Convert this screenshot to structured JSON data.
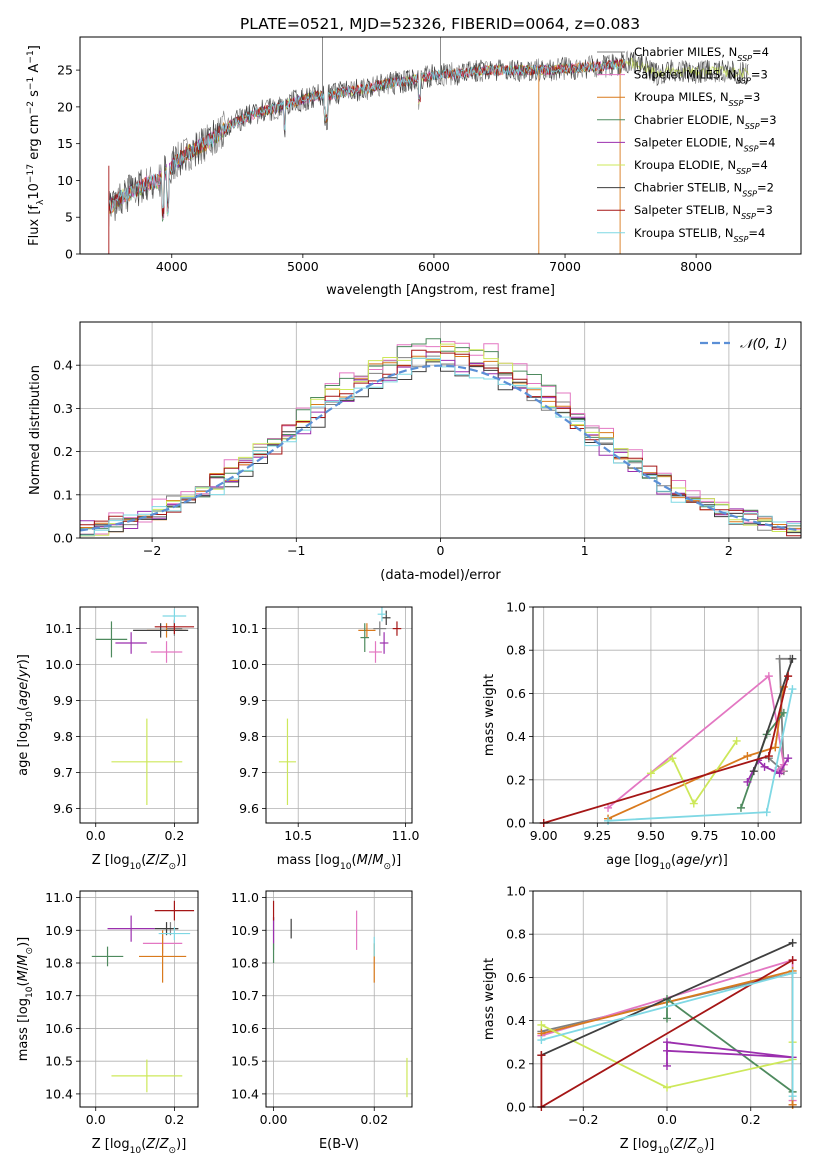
{
  "figure": {
    "title": "PLATE=0521, MJD=52326, FIBERID=0064, z=0.083"
  },
  "models": [
    {
      "label": "Chabrier MILES, N$_{SSP}$=4",
      "name": "Chabrier MILES, N",
      "sub": "SSP",
      "tail": "=4",
      "color": "#808080"
    },
    {
      "label": "Salpeter MILES, N$_{SSP}$=3",
      "name": "Salpeter MILES, N",
      "sub": "SSP",
      "tail": "=3",
      "color": "#e377c2"
    },
    {
      "label": "Kroupa MILES, N$_{SSP}$=3",
      "name": "Kroupa MILES, N",
      "sub": "SSP",
      "tail": "=3",
      "color": "#d97a1d"
    },
    {
      "label": "Chabrier ELODIE, N$_{SSP}$=3",
      "name": "Chabrier ELODIE, N",
      "sub": "SSP",
      "tail": "=3",
      "color": "#4e8a5e"
    },
    {
      "label": "Salpeter ELODIE, N$_{SSP}$=4",
      "name": "Salpeter ELODIE, N",
      "sub": "SSP",
      "tail": "=4",
      "color": "#9b2fae"
    },
    {
      "label": "Kroupa ELODIE, N$_{SSP}$=4",
      "name": "Kroupa ELODIE, N",
      "sub": "SSP",
      "tail": "=4",
      "color": "#cde85a"
    },
    {
      "label": "Chabrier STELIB, N$_{SSP}$=2",
      "name": "Chabrier STELIB, N",
      "sub": "SSP",
      "tail": "=2",
      "color": "#3f3f3f"
    },
    {
      "label": "Salpeter STELIB, N$_{SSP}$=3",
      "name": "Salpeter STELIB, N",
      "sub": "SSP",
      "tail": "=3",
      "color": "#a51616"
    },
    {
      "label": "Kroupa STELIB, N$_{SSP}$=4",
      "name": "Kroupa STELIB, N",
      "sub": "SSP",
      "tail": "=4",
      "color": "#7fd8e4"
    }
  ],
  "chart_data": [
    {
      "id": "spectrum",
      "type": "line",
      "xlabel": "wavelength [Angstrom, rest frame]",
      "ylabel": "Flux [f$_\\lambda$10$^{-17}$ erg cm$^{-2}$ s$^{-1}$ A$^{-1}$]",
      "ylabel_parts": [
        "Flux [f",
        "λ",
        "10",
        "−17",
        " erg cm",
        "−2",
        " s",
        "−1",
        " A",
        "−1",
        "]"
      ],
      "xlim": [
        3300,
        8800
      ],
      "ylim": [
        0,
        29.5
      ],
      "xticks": [
        4000,
        5000,
        6000,
        7000,
        8000
      ],
      "yticks": [
        0,
        5,
        10,
        15,
        20,
        25
      ],
      "continuum": [
        [
          3500,
          6
        ],
        [
          3600,
          7.5
        ],
        [
          3700,
          8.5
        ],
        [
          3800,
          9.5
        ],
        [
          3900,
          10
        ],
        [
          4000,
          12
        ],
        [
          4100,
          13.5
        ],
        [
          4200,
          14.5
        ],
        [
          4300,
          15.5
        ],
        [
          4400,
          17
        ],
        [
          4500,
          18
        ],
        [
          4600,
          18.8
        ],
        [
          4700,
          19.5
        ],
        [
          4800,
          19.8
        ],
        [
          4900,
          20.5
        ],
        [
          5000,
          21
        ],
        [
          5100,
          21.5
        ],
        [
          5200,
          21.5
        ],
        [
          5300,
          22
        ],
        [
          5400,
          22.3
        ],
        [
          5500,
          22.5
        ],
        [
          5600,
          23
        ],
        [
          5700,
          23.3
        ],
        [
          5800,
          23.5
        ],
        [
          5900,
          24
        ],
        [
          6000,
          24.3
        ],
        [
          6100,
          24.5
        ],
        [
          6200,
          24.5
        ],
        [
          6300,
          24.8
        ],
        [
          6400,
          25
        ],
        [
          6500,
          25
        ],
        [
          6600,
          25
        ],
        [
          6700,
          25
        ],
        [
          6800,
          25
        ],
        [
          6900,
          25
        ],
        [
          7000,
          25.2
        ],
        [
          7100,
          25.3
        ],
        [
          7200,
          25.5
        ],
        [
          7300,
          25.5
        ],
        [
          7400,
          25.8
        ],
        [
          7500,
          26
        ],
        [
          7600,
          25.5
        ],
        [
          7700,
          24.5
        ],
        [
          7800,
          25
        ],
        [
          7900,
          24.8
        ],
        [
          8000,
          24.7
        ],
        [
          8100,
          25
        ],
        [
          8200,
          24.8
        ],
        [
          8300,
          24.7
        ],
        [
          8400,
          24.5
        ]
      ],
      "spikes": [
        [
          5150,
          29.5
        ],
        [
          6050,
          29.5
        ],
        [
          6800,
          0
        ],
        [
          7420,
          0
        ]
      ],
      "legend": "right"
    },
    {
      "id": "residuals",
      "type": "step",
      "xlabel": "(data-model)/error",
      "ylabel": "Normed distribution",
      "xlim": [
        -2.5,
        2.5
      ],
      "ylim": [
        0,
        0.5
      ],
      "xticks": [
        -2,
        -1,
        0,
        1,
        2
      ],
      "yticks": [
        0.0,
        0.1,
        0.2,
        0.3,
        0.4
      ],
      "reference": {
        "label": "$\\mathcal{N}(0,1)$",
        "text": "𝒩(0, 1)",
        "mean": 0,
        "sigma": 1,
        "color": "#5b8fd6"
      },
      "legend": "top-right",
      "bin_width": 0.1,
      "hist_peaks": [
        0.42,
        0.455,
        0.43,
        0.44,
        0.41,
        0.43,
        0.4,
        0.42,
        0.405
      ]
    },
    {
      "id": "age-Z",
      "type": "scatter",
      "xlabel": "Z [log$_{10}$(Z/Z$_\\odot$)]",
      "ylabel": "age  [log$_{10}$(age/yr)]",
      "xlim": [
        -0.04,
        0.26
      ],
      "ylim": [
        9.56,
        10.16
      ],
      "xticks": [
        0.0,
        0.2
      ],
      "yticks": [
        9.6,
        9.7,
        9.8,
        9.9,
        10.0,
        10.1
      ],
      "points": [
        {
          "x": 0.2,
          "y": 10.1,
          "xerr": 0.02,
          "yerr": 0.02,
          "model": 0
        },
        {
          "x": 0.18,
          "y": 10.035,
          "xerr": 0.04,
          "yerr": 0.03,
          "model": 1
        },
        {
          "x": 0.18,
          "y": 10.095,
          "xerr": 0.05,
          "yerr": 0.02,
          "model": 2
        },
        {
          "x": 0.04,
          "y": 10.07,
          "xerr": 0.04,
          "yerr": 0.05,
          "model": 3
        },
        {
          "x": 0.09,
          "y": 10.06,
          "xerr": 0.04,
          "yerr": 0.03,
          "model": 4
        },
        {
          "x": 0.13,
          "y": 9.73,
          "xerr": 0.09,
          "yerr": 0.12,
          "model": 5
        },
        {
          "x": 0.165,
          "y": 10.095,
          "xerr": 0.07,
          "yerr": 0.02,
          "model": 6
        },
        {
          "x": 0.2,
          "y": 10.105,
          "xerr": 0.05,
          "yerr": 0.02,
          "model": 7
        },
        {
          "x": 0.2,
          "y": 10.135,
          "xerr": 0.03,
          "yerr": 0.02,
          "model": 8
        }
      ]
    },
    {
      "id": "age-mass",
      "type": "scatter",
      "xlabel": "mass [log$_{10}$(M/M$_\\odot$)]",
      "ylabel": "",
      "xlim": [
        10.35,
        11.03
      ],
      "ylim": [
        9.56,
        10.16
      ],
      "xticks": [
        10.5,
        11.0
      ],
      "yticks": [
        9.6,
        9.7,
        9.8,
        9.9,
        10.0,
        10.1
      ],
      "points": [
        {
          "x": 10.88,
          "y": 10.1,
          "xerr": 0.03,
          "yerr": 0.02,
          "model": 0
        },
        {
          "x": 10.86,
          "y": 10.035,
          "xerr": 0.03,
          "yerr": 0.03,
          "model": 1
        },
        {
          "x": 10.82,
          "y": 10.095,
          "xerr": 0.04,
          "yerr": 0.02,
          "model": 2
        },
        {
          "x": 10.81,
          "y": 10.075,
          "xerr": 0.02,
          "yerr": 0.04,
          "model": 3
        },
        {
          "x": 10.9,
          "y": 10.06,
          "xerr": 0.02,
          "yerr": 0.03,
          "model": 4
        },
        {
          "x": 10.45,
          "y": 9.73,
          "xerr": 0.04,
          "yerr": 0.12,
          "model": 5
        },
        {
          "x": 10.91,
          "y": 10.13,
          "xerr": 0.02,
          "yerr": 0.02,
          "model": 6
        },
        {
          "x": 10.96,
          "y": 10.1,
          "xerr": 0.02,
          "yerr": 0.02,
          "model": 7
        },
        {
          "x": 10.89,
          "y": 10.14,
          "xerr": 0.02,
          "yerr": 0.02,
          "model": 8
        }
      ]
    },
    {
      "id": "weight-age",
      "type": "line",
      "xlabel": "age  [log$_{10}$(age/yr)]",
      "ylabel": "mass weight",
      "xlim": [
        8.95,
        10.2
      ],
      "ylim": [
        0,
        1.0
      ],
      "xticks": [
        9.0,
        9.25,
        9.5,
        9.75,
        10.0
      ],
      "yticks": [
        0.0,
        0.2,
        0.4,
        0.6,
        0.8,
        1.0
      ],
      "series": [
        {
          "model": 0,
          "x": [
            10.05,
            10.12,
            10.1,
            10.15
          ],
          "y": [
            0.3,
            0.24,
            0.76,
            0.76
          ]
        },
        {
          "model": 1,
          "x": [
            9.3,
            10.05,
            10.12,
            10.08,
            10.11
          ],
          "y": [
            0.07,
            0.68,
            0.27,
            0.24,
            0.24
          ]
        },
        {
          "model": 2,
          "x": [
            9.3,
            9.95,
            10.08,
            10.12
          ],
          "y": [
            0.02,
            0.31,
            0.35,
            0.63
          ]
        },
        {
          "model": 3,
          "x": [
            9.92,
            10.04,
            10.12
          ],
          "y": [
            0.07,
            0.41,
            0.51
          ]
        },
        {
          "model": 4,
          "x": [
            9.95,
            10.0,
            10.03,
            10.1,
            10.14
          ],
          "y": [
            0.19,
            0.29,
            0.26,
            0.23,
            0.3
          ]
        },
        {
          "model": 5,
          "x": [
            9.5,
            9.6,
            9.7,
            9.9
          ],
          "y": [
            0.23,
            0.3,
            0.09,
            0.38
          ]
        },
        {
          "model": 6,
          "x": [
            9.98,
            10.16
          ],
          "y": [
            0.24,
            0.76
          ]
        },
        {
          "model": 7,
          "x": [
            9.0,
            10.05,
            10.14
          ],
          "y": [
            0.0,
            0.31,
            0.68
          ]
        },
        {
          "model": 8,
          "x": [
            9.3,
            10.04,
            10.16
          ],
          "y": [
            0.01,
            0.05,
            0.62
          ]
        }
      ]
    },
    {
      "id": "mass-Z",
      "type": "scatter",
      "xlabel": "Z [log$_{10}$(Z/Z$_\\odot$)]",
      "ylabel": "mass [log$_{10}$(M/M$_\\odot$)]",
      "xlim": [
        -0.04,
        0.26
      ],
      "ylim": [
        10.36,
        11.02
      ],
      "xticks": [
        0.0,
        0.2
      ],
      "yticks": [
        10.4,
        10.5,
        10.6,
        10.7,
        10.8,
        10.9,
        11.0
      ],
      "points": [
        {
          "x": 0.19,
          "y": 10.905,
          "xerr": 0.02,
          "yerr": 0.02,
          "model": 0
        },
        {
          "x": 0.17,
          "y": 10.86,
          "xerr": 0.05,
          "yerr": 0.03,
          "model": 1
        },
        {
          "x": 0.17,
          "y": 10.82,
          "xerr": 0.06,
          "yerr": 0.08,
          "model": 2
        },
        {
          "x": 0.03,
          "y": 10.82,
          "xerr": 0.04,
          "yerr": 0.03,
          "model": 3
        },
        {
          "x": 0.09,
          "y": 10.905,
          "xerr": 0.06,
          "yerr": 0.04,
          "model": 4
        },
        {
          "x": 0.13,
          "y": 10.455,
          "xerr": 0.09,
          "yerr": 0.05,
          "model": 5
        },
        {
          "x": 0.18,
          "y": 10.905,
          "xerr": 0.03,
          "yerr": 0.02,
          "model": 6
        },
        {
          "x": 0.2,
          "y": 10.96,
          "xerr": 0.05,
          "yerr": 0.03,
          "model": 7
        },
        {
          "x": 0.2,
          "y": 10.89,
          "xerr": 0.04,
          "yerr": 0.02,
          "model": 8
        }
      ]
    },
    {
      "id": "mass-ebv",
      "type": "scatter",
      "xlabel": "E(B-V)",
      "ylabel": "",
      "xlim": [
        -0.0015,
        0.0275
      ],
      "ylim": [
        10.36,
        11.02
      ],
      "xticks": [
        0.0,
        0.02
      ],
      "yticks": [
        10.4,
        10.5,
        10.6,
        10.7,
        10.8,
        10.9,
        11.0
      ],
      "points": [
        {
          "x": 0.0,
          "y": 10.89,
          "xerr": 0,
          "yerr": 0.05,
          "model": 0
        },
        {
          "x": 0.0165,
          "y": 10.9,
          "xerr": 0,
          "yerr": 0.06,
          "model": 1
        },
        {
          "x": 0.02,
          "y": 10.8,
          "xerr": 0,
          "yerr": 0.06,
          "model": 2
        },
        {
          "x": 0.0,
          "y": 10.83,
          "xerr": 0,
          "yerr": 0.03,
          "model": 3
        },
        {
          "x": 0.0,
          "y": 10.9,
          "xerr": 0,
          "yerr": 0.04,
          "model": 4
        },
        {
          "x": 0.0265,
          "y": 10.45,
          "xerr": 0,
          "yerr": 0.06,
          "model": 5
        },
        {
          "x": 0.0035,
          "y": 10.905,
          "xerr": 0,
          "yerr": 0.03,
          "model": 6
        },
        {
          "x": 0.0,
          "y": 10.96,
          "xerr": 0,
          "yerr": 0.03,
          "model": 7
        },
        {
          "x": 0.02,
          "y": 10.85,
          "xerr": 0,
          "yerr": 0.03,
          "model": 8
        }
      ]
    },
    {
      "id": "weight-Z",
      "type": "line",
      "xlabel": "Z [log$_{10}$(Z/Z$_\\odot$)]",
      "ylabel": "mass weight",
      "xlim": [
        -0.32,
        0.32
      ],
      "ylim": [
        0,
        1.0
      ],
      "xticks": [
        -0.2,
        0.0,
        0.2
      ],
      "yticks": [
        0.0,
        0.2,
        0.4,
        0.6,
        0.8,
        1.0
      ],
      "series": [
        {
          "model": 0,
          "x": [
            -0.3,
            0.3,
            0.3
          ],
          "y": [
            0.35,
            0.62,
            0.01
          ]
        },
        {
          "model": 1,
          "x": [
            -0.3,
            0.3,
            0.3
          ],
          "y": [
            0.33,
            0.68,
            0.03
          ]
        },
        {
          "model": 2,
          "x": [
            -0.3,
            0.3,
            0.3
          ],
          "y": [
            0.34,
            0.63,
            0.01
          ]
        },
        {
          "model": 3,
          "x": [
            0.0,
            0.0,
            0.3
          ],
          "y": [
            0.41,
            0.5,
            0.07
          ]
        },
        {
          "model": 4,
          "x": [
            0.0,
            0.0,
            0.3,
            0.0
          ],
          "y": [
            0.19,
            0.3,
            0.23,
            0.26
          ]
        },
        {
          "model": 5,
          "x": [
            -0.3,
            0.0,
            0.3,
            0.3
          ],
          "y": [
            0.38,
            0.09,
            0.22,
            0.3
          ]
        },
        {
          "model": 6,
          "x": [
            -0.3,
            0.3
          ],
          "y": [
            0.24,
            0.76
          ]
        },
        {
          "model": 7,
          "x": [
            -0.3,
            -0.3,
            0.3
          ],
          "y": [
            0.24,
            0.0,
            0.68
          ]
        },
        {
          "model": 8,
          "x": [
            -0.3,
            0.3,
            0.3
          ],
          "y": [
            0.31,
            0.62,
            0.05
          ]
        }
      ]
    }
  ]
}
